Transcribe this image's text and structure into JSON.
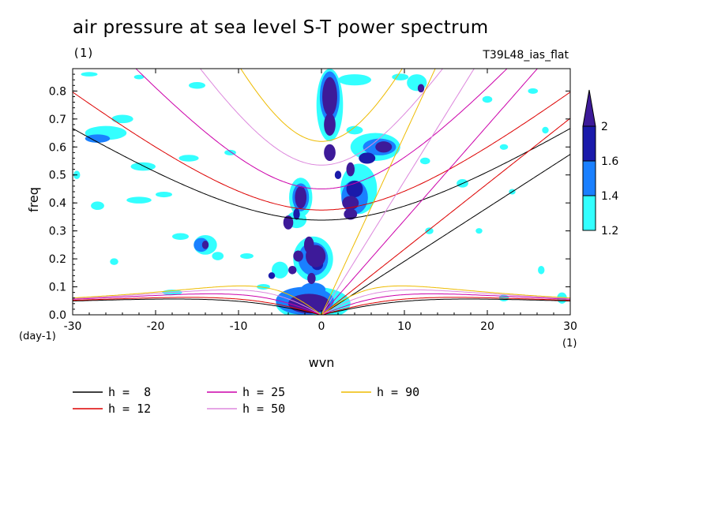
{
  "chart_data": {
    "type": "heatmap",
    "title": "air pressure at sea level S-T power spectrum",
    "title_unit": "(1)",
    "subtitle": "T39L48_ias_flat",
    "xlabel": "wvn",
    "ylabel": "freq",
    "x_unit": "(1)",
    "y_unit": "(day-1)",
    "xlim": [
      -30,
      30
    ],
    "ylim": [
      0,
      0.88
    ],
    "xticks": [
      "-30",
      "-20",
      "-10",
      "0",
      "10",
      "20",
      "30"
    ],
    "xtick_values": [
      -30,
      -20,
      -10,
      0,
      10,
      20,
      30
    ],
    "yticks": [
      "0.0",
      "0.1",
      "0.2",
      "0.3",
      "0.4",
      "0.5",
      "0.6",
      "0.7",
      "0.8"
    ],
    "ytick_values": [
      0,
      0.1,
      0.2,
      0.3,
      0.4,
      0.5,
      0.6,
      0.7,
      0.8
    ],
    "colorbar": {
      "levels": [
        "1.2",
        "1.4",
        "1.6",
        "2"
      ],
      "level_values": [
        1.2,
        1.4,
        1.6,
        2.0
      ],
      "colors": [
        "#33ffff",
        "#1a80ff",
        "#1a1aaa",
        "#3d1a99"
      ]
    },
    "series": [
      {
        "name": "h =  8",
        "h": 8,
        "color": "#000000"
      },
      {
        "name": "h = 12",
        "h": 12,
        "color": "#dd0000"
      },
      {
        "name": "h = 25",
        "h": 25,
        "color": "#cc00aa"
      },
      {
        "name": "h = 50",
        "h": 50,
        "color": "#dd88dd"
      },
      {
        "name": "h = 90",
        "h": 90,
        "color": "#eebb00"
      }
    ],
    "blobs": [
      {
        "x": 1.0,
        "y": 0.78,
        "rx": 0.9,
        "ry": 0.07,
        "level": 3
      },
      {
        "x": 1.0,
        "y": 0.68,
        "rx": 0.7,
        "ry": 0.04,
        "level": 3
      },
      {
        "x": 1.0,
        "y": 0.58,
        "rx": 0.7,
        "ry": 0.03,
        "level": 3
      },
      {
        "x": -2.5,
        "y": 0.42,
        "rx": 0.7,
        "ry": 0.04,
        "level": 3
      },
      {
        "x": -4.0,
        "y": 0.33,
        "rx": 0.6,
        "ry": 0.025,
        "level": 3
      },
      {
        "x": -1.5,
        "y": 0.25,
        "rx": 0.6,
        "ry": 0.03,
        "level": 3
      },
      {
        "x": -0.7,
        "y": 0.21,
        "rx": 1.2,
        "ry": 0.04,
        "level": 3
      },
      {
        "x": -2.8,
        "y": 0.21,
        "rx": 0.6,
        "ry": 0.02,
        "level": 3
      },
      {
        "x": -1.2,
        "y": 0.13,
        "rx": 0.5,
        "ry": 0.02,
        "level": 3
      },
      {
        "x": -3.5,
        "y": 0.16,
        "rx": 0.5,
        "ry": 0.015,
        "level": 3
      },
      {
        "x": -1.5,
        "y": 0.04,
        "rx": 2.5,
        "ry": 0.035,
        "level": 3
      },
      {
        "x": 3.5,
        "y": 0.4,
        "rx": 1.0,
        "ry": 0.025,
        "level": 3
      },
      {
        "x": 3.5,
        "y": 0.36,
        "rx": 0.8,
        "ry": 0.02,
        "level": 3
      },
      {
        "x": 3.5,
        "y": 0.52,
        "rx": 0.5,
        "ry": 0.025,
        "level": 3
      },
      {
        "x": 7.5,
        "y": 0.6,
        "rx": 1.0,
        "ry": 0.02,
        "level": 3
      },
      {
        "x": 12.0,
        "y": 0.81,
        "rx": 0.4,
        "ry": 0.015,
        "level": 3
      },
      {
        "x": -14.0,
        "y": 0.25,
        "rx": 0.4,
        "ry": 0.015,
        "level": 3
      },
      {
        "x": -3.0,
        "y": 0.36,
        "rx": 0.4,
        "ry": 0.02,
        "level": 2
      },
      {
        "x": 2.0,
        "y": 0.5,
        "rx": 0.4,
        "ry": 0.015,
        "level": 2
      },
      {
        "x": -6.0,
        "y": 0.14,
        "rx": 0.4,
        "ry": 0.012,
        "level": 2
      },
      {
        "x": 4.0,
        "y": 0.45,
        "rx": 1.0,
        "ry": 0.03,
        "level": 2
      },
      {
        "x": 5.5,
        "y": 0.56,
        "rx": 1.0,
        "ry": 0.02,
        "level": 2
      },
      {
        "x": -0.5,
        "y": 0.18,
        "rx": 0.7,
        "ry": 0.02,
        "level": 2
      },
      {
        "x": 1.0,
        "y": 0.78,
        "rx": 1.2,
        "ry": 0.09,
        "level": 1
      },
      {
        "x": -1.0,
        "y": 0.2,
        "rx": 1.8,
        "ry": 0.06,
        "level": 1
      },
      {
        "x": -2.0,
        "y": 0.05,
        "rx": 3.5,
        "ry": 0.05,
        "level": 1
      },
      {
        "x": -1.0,
        "y": 0.09,
        "rx": 1.5,
        "ry": 0.025,
        "level": 1
      },
      {
        "x": 4.0,
        "y": 0.42,
        "rx": 1.6,
        "ry": 0.06,
        "level": 1
      },
      {
        "x": 7.0,
        "y": 0.6,
        "rx": 2.0,
        "ry": 0.03,
        "level": 1
      },
      {
        "x": -2.5,
        "y": 0.42,
        "rx": 1.0,
        "ry": 0.05,
        "level": 1
      },
      {
        "x": -14.5,
        "y": 0.25,
        "rx": 0.9,
        "ry": 0.025,
        "level": 1
      },
      {
        "x": -1.0,
        "y": 0.04,
        "rx": 4.5,
        "ry": 0.06,
        "level": 0
      },
      {
        "x": -1.0,
        "y": 0.2,
        "rx": 2.4,
        "ry": 0.08,
        "level": 0
      },
      {
        "x": 1.0,
        "y": 0.75,
        "rx": 1.6,
        "ry": 0.13,
        "level": 0
      },
      {
        "x": 4.5,
        "y": 0.45,
        "rx": 2.2,
        "ry": 0.09,
        "level": 0
      },
      {
        "x": 6.5,
        "y": 0.6,
        "rx": 3.0,
        "ry": 0.05,
        "level": 0
      },
      {
        "x": 4.0,
        "y": 0.66,
        "rx": 1.0,
        "ry": 0.015,
        "level": 0
      },
      {
        "x": -26.0,
        "y": 0.65,
        "rx": 2.5,
        "ry": 0.025,
        "level": 0
      },
      {
        "x": -27.0,
        "y": 0.63,
        "rx": 1.5,
        "ry": 0.015,
        "level": 1
      },
      {
        "x": -24.0,
        "y": 0.7,
        "rx": 1.3,
        "ry": 0.015,
        "level": 0
      },
      {
        "x": -21.5,
        "y": 0.53,
        "rx": 1.5,
        "ry": 0.015,
        "level": 0
      },
      {
        "x": -16.0,
        "y": 0.56,
        "rx": 1.2,
        "ry": 0.012,
        "level": 0
      },
      {
        "x": -15.0,
        "y": 0.82,
        "rx": 1.0,
        "ry": 0.012,
        "level": 0
      },
      {
        "x": -11.0,
        "y": 0.58,
        "rx": 0.7,
        "ry": 0.01,
        "level": 0
      },
      {
        "x": -17.0,
        "y": 0.28,
        "rx": 1.0,
        "ry": 0.012,
        "level": 0
      },
      {
        "x": -19.0,
        "y": 0.43,
        "rx": 1.0,
        "ry": 0.01,
        "level": 0
      },
      {
        "x": -22.0,
        "y": 0.41,
        "rx": 1.5,
        "ry": 0.012,
        "level": 0
      },
      {
        "x": -27.0,
        "y": 0.39,
        "rx": 0.8,
        "ry": 0.015,
        "level": 0
      },
      {
        "x": -25.0,
        "y": 0.19,
        "rx": 0.5,
        "ry": 0.012,
        "level": 0
      },
      {
        "x": -12.5,
        "y": 0.21,
        "rx": 0.7,
        "ry": 0.015,
        "level": 0
      },
      {
        "x": -9.0,
        "y": 0.21,
        "rx": 0.8,
        "ry": 0.01,
        "level": 0
      },
      {
        "x": -14.0,
        "y": 0.25,
        "rx": 1.4,
        "ry": 0.035,
        "level": 0
      },
      {
        "x": -18.0,
        "y": 0.08,
        "rx": 1.2,
        "ry": 0.01,
        "level": 0
      },
      {
        "x": -29.5,
        "y": 0.5,
        "rx": 0.4,
        "ry": 0.015,
        "level": 0
      },
      {
        "x": -28.0,
        "y": 0.86,
        "rx": 1.0,
        "ry": 0.008,
        "level": 0
      },
      {
        "x": -22.0,
        "y": 0.85,
        "rx": 0.6,
        "ry": 0.008,
        "level": 0
      },
      {
        "x": -5.0,
        "y": 0.16,
        "rx": 1.0,
        "ry": 0.03,
        "level": 0
      },
      {
        "x": -2.5,
        "y": 0.42,
        "rx": 1.4,
        "ry": 0.07,
        "level": 0
      },
      {
        "x": -3.0,
        "y": 0.34,
        "rx": 1.2,
        "ry": 0.03,
        "level": 0
      },
      {
        "x": 4.0,
        "y": 0.84,
        "rx": 2.0,
        "ry": 0.02,
        "level": 0
      },
      {
        "x": 11.5,
        "y": 0.83,
        "rx": 1.2,
        "ry": 0.03,
        "level": 0
      },
      {
        "x": 9.5,
        "y": 0.85,
        "rx": 1.0,
        "ry": 0.012,
        "level": 0
      },
      {
        "x": 12.5,
        "y": 0.55,
        "rx": 0.6,
        "ry": 0.012,
        "level": 0
      },
      {
        "x": 13.0,
        "y": 0.3,
        "rx": 0.5,
        "ry": 0.012,
        "level": 0
      },
      {
        "x": 17.0,
        "y": 0.47,
        "rx": 0.7,
        "ry": 0.015,
        "level": 0
      },
      {
        "x": 20.0,
        "y": 0.77,
        "rx": 0.6,
        "ry": 0.012,
        "level": 0
      },
      {
        "x": 22.0,
        "y": 0.6,
        "rx": 0.5,
        "ry": 0.01,
        "level": 0
      },
      {
        "x": 23.0,
        "y": 0.44,
        "rx": 0.4,
        "ry": 0.01,
        "level": 0
      },
      {
        "x": 25.5,
        "y": 0.8,
        "rx": 0.6,
        "ry": 0.01,
        "level": 0
      },
      {
        "x": 26.5,
        "y": 0.16,
        "rx": 0.4,
        "ry": 0.015,
        "level": 0
      },
      {
        "x": 29.0,
        "y": 0.06,
        "rx": 0.6,
        "ry": 0.02,
        "level": 0
      },
      {
        "x": 27.0,
        "y": 0.66,
        "rx": 0.4,
        "ry": 0.012,
        "level": 0
      },
      {
        "x": 22.0,
        "y": 0.06,
        "rx": 0.6,
        "ry": 0.012,
        "level": 0
      },
      {
        "x": 19.0,
        "y": 0.3,
        "rx": 0.4,
        "ry": 0.01,
        "level": 0
      },
      {
        "x": -7.0,
        "y": 0.1,
        "rx": 0.8,
        "ry": 0.01,
        "level": 0
      }
    ]
  }
}
